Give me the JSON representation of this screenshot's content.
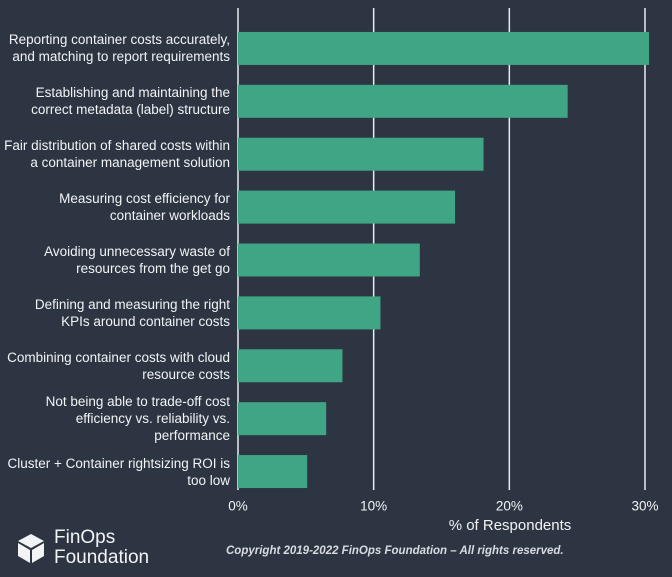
{
  "chart_data": {
    "type": "barh",
    "categories": [
      "Reporting container costs accurately, and matching to report requirements",
      "Establishing and maintaining the correct metadata (label) structure",
      "Fair distribution of shared costs within a container management solution",
      "Measuring cost efficiency for container workloads",
      "Avoiding unnecessary waste of resources from the get go",
      "Defining and measuring the right KPIs around container costs",
      "Combining container costs with cloud resource costs",
      "Not being able to trade-off cost efficiency vs. reliability vs. performance",
      "Cluster + Container rightsizing ROI is too low"
    ],
    "values": [
      30.3,
      24.3,
      18.1,
      16.0,
      13.4,
      10.5,
      7.7,
      6.5,
      5.1
    ],
    "color": "#3fa584",
    "xlabel": "% of Respondents",
    "xlim": [
      0,
      30
    ],
    "xticks": [
      {
        "value": 0,
        "label": "0%"
      },
      {
        "value": 10,
        "label": "10%"
      },
      {
        "value": 20,
        "label": "20%"
      },
      {
        "value": 30,
        "label": "30%"
      }
    ],
    "grid": true
  },
  "footer": {
    "logo": [
      "FinOps",
      "Foundation"
    ],
    "copyright": "Copyright 2019-2022 FinOps Foundation – All rights reserved."
  }
}
